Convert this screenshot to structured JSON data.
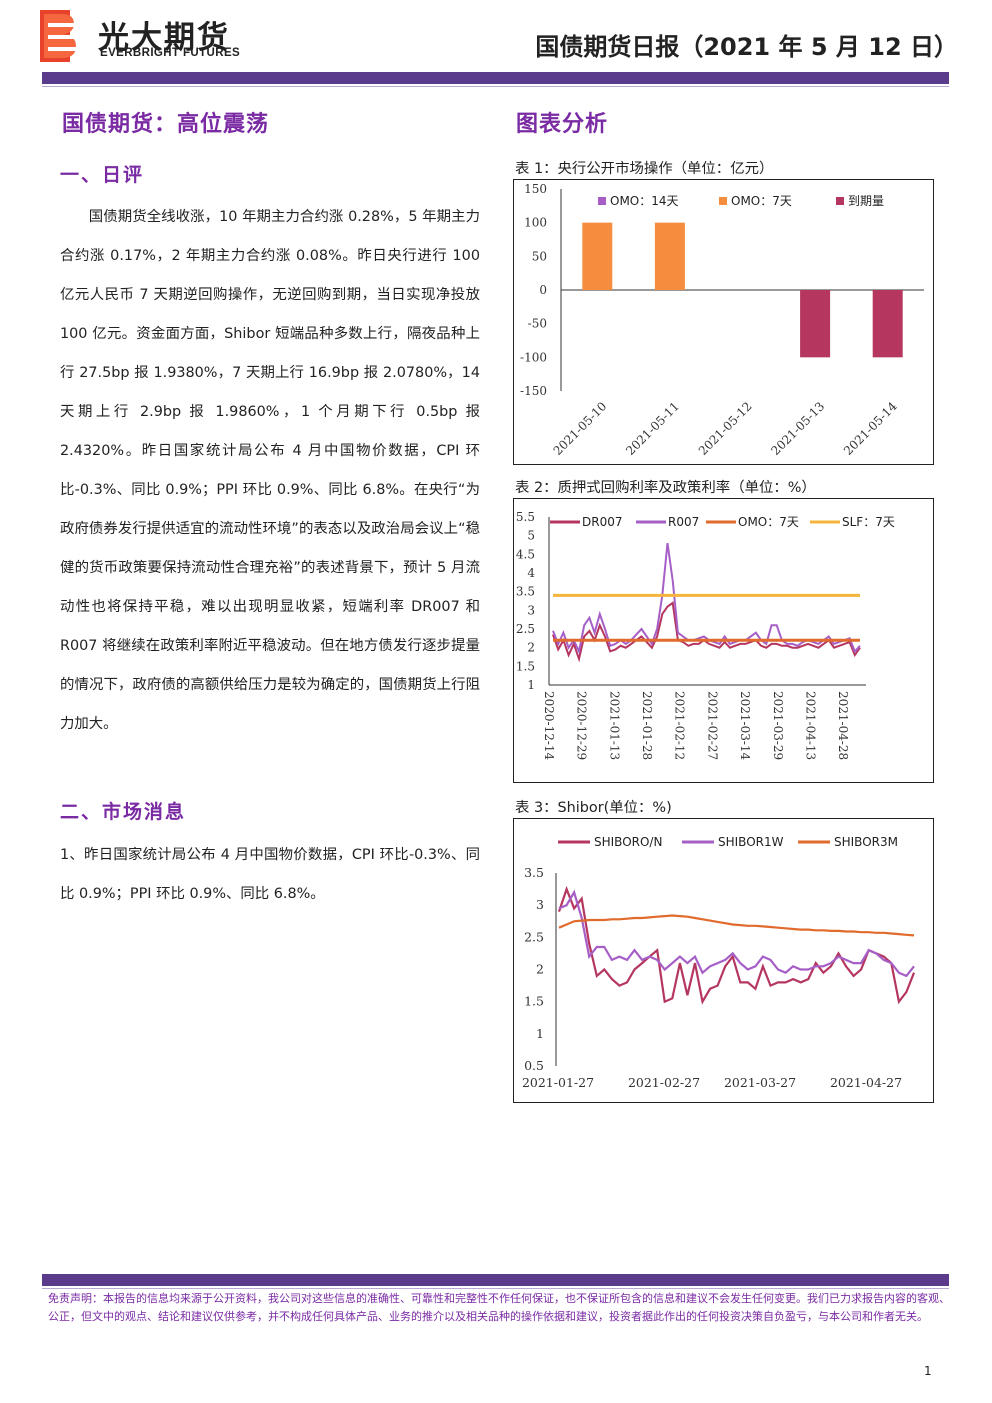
{
  "header": {
    "company_cn": "光大期货",
    "company_en": "EVERBRIGHT FUTURES",
    "doc_title": "国债期货日报（2021 年 5 月 12 日）"
  },
  "left": {
    "section_title": "国债期货：高位震荡",
    "daily_title": "一、日评",
    "daily_text": "国债期货全线收涨，10 年期主力合约涨 0.28%，5 年期主力合约涨 0.17%，2 年期主力合约涨 0.08%。昨日央行进行 100 亿元人民币 7 天期逆回购操作，无逆回购到期，当日实现净投放 100 亿元。资金面方面，Shibor 短端品种多数上行，隔夜品种上行 27.5bp 报 1.9380%，7 天期上行 16.9bp 报 2.0780%，14 天期上行 2.9bp 报 1.9860%，1 个月期下行 0.5bp 报 2.4320%。昨日国家统计局公布 4 月中国物价数据，CPI 环比-0.3%、同比 0.9%；PPI 环比 0.9%、同比 6.8%。在央行“为政府债券发行提供适宜的流动性环境”的表态以及政治局会议上“稳健的货币政策要保持流动性合理充裕”的表述背景下，预计 5 月流动性也将保持平稳，难以出现明显收紧，短端利率 DR007 和 R007 将继续在政策利率附近平稳波动。但在地方债发行逐步提量的情况下，政府债的高额供给压力是较为确定的，国债期货上行阻力加大。",
    "market_title": "二、市场消息",
    "market_text": "1、昨日国家统计局公布 4 月中国物价数据，CPI 环比-0.3%、同比 0.9%；PPI 环比 0.9%、同比 6.8%。"
  },
  "right": {
    "section_title": "图表分析"
  },
  "colors": {
    "brand_purple": "#5b3b8c",
    "heading_purple": "#7a2aa3",
    "omo7_orange": "#f58d3f",
    "maturity_red": "#b5365f",
    "dr007": "#b5365f",
    "r007": "#a65fc7",
    "omo_line": "#e06b2c",
    "slf_line": "#f5b53d"
  },
  "chart_data": [
    {
      "type": "bar",
      "title": "表 1：央行公开市场操作（单位：亿元）",
      "categories": [
        "2021-05-10",
        "2021-05-11",
        "2021-05-12",
        "2021-05-13",
        "2021-05-14"
      ],
      "series": [
        {
          "name": "OMO：14天",
          "color": "#a65fc7",
          "values": [
            0,
            0,
            0,
            0,
            0
          ]
        },
        {
          "name": "OMO：7天",
          "color": "#f58d3f",
          "values": [
            100,
            100,
            0,
            0,
            0
          ]
        },
        {
          "name": "到期量",
          "color": "#b5365f",
          "values": [
            0,
            0,
            0,
            -100,
            -100
          ]
        }
      ],
      "ylim": [
        -150,
        150
      ],
      "yticks": [
        "150",
        "100",
        "50",
        "0",
        "-50",
        "-100",
        "-150"
      ],
      "legend": "top"
    },
    {
      "type": "line",
      "title": "表 2：质押式回购利率及政策利率（单位：%）",
      "xticks": [
        "2020-12-14",
        "2020-12-29",
        "2021-01-13",
        "2021-01-28",
        "2021-02-12",
        "2021-02-27",
        "2021-03-14",
        "2021-03-29",
        "2021-04-13",
        "2021-04-28"
      ],
      "ylim": [
        1,
        5.5
      ],
      "yticks": [
        "5.5",
        "5",
        "4.5",
        "4",
        "3.5",
        "3",
        "2.5",
        "2",
        "1.5",
        "1"
      ],
      "series": [
        {
          "name": "DR007",
          "color": "#b5365f",
          "values": [
            2.35,
            1.95,
            2.2,
            1.8,
            2.1,
            1.7,
            2.3,
            2.45,
            2.2,
            2.6,
            2.3,
            1.9,
            1.95,
            2.05,
            2.0,
            2.1,
            2.2,
            2.3,
            2.15,
            2.0,
            2.3,
            2.9,
            3.1,
            3.2,
            2.2,
            2.15,
            2.05,
            2.1,
            2.1,
            2.2,
            2.1,
            2.05,
            2.0,
            2.15,
            2.0,
            2.05,
            2.1,
            2.1,
            2.15,
            2.2,
            2.05,
            2.0,
            2.1,
            2.1,
            2.05,
            2.05,
            2.0,
            2.0,
            2.05,
            2.1,
            2.05,
            2.0,
            2.1,
            2.2,
            2.0,
            2.05,
            2.1,
            2.15,
            1.8,
            2.0
          ]
        },
        {
          "name": "R007",
          "color": "#a65fc7",
          "values": [
            2.45,
            2.1,
            2.4,
            2.0,
            2.2,
            1.9,
            2.6,
            2.8,
            2.4,
            2.9,
            2.5,
            2.05,
            2.1,
            2.2,
            2.1,
            2.2,
            2.35,
            2.5,
            2.3,
            2.1,
            2.5,
            3.4,
            4.8,
            3.8,
            2.4,
            2.3,
            2.2,
            2.2,
            2.25,
            2.3,
            2.2,
            2.15,
            2.1,
            2.3,
            2.1,
            2.15,
            2.2,
            2.2,
            2.3,
            2.4,
            2.2,
            2.1,
            2.6,
            2.6,
            2.2,
            2.1,
            2.1,
            2.05,
            2.15,
            2.2,
            2.15,
            2.1,
            2.2,
            2.3,
            2.1,
            2.15,
            2.2,
            2.25,
            1.9,
            2.05
          ]
        },
        {
          "name": "OMO：7天",
          "color": "#e06b2c",
          "values": [
            2.2,
            2.2
          ]
        },
        {
          "name": "SLF：7天",
          "color": "#f5b53d",
          "values": [
            3.4,
            3.4
          ]
        }
      ],
      "legend": "top"
    },
    {
      "type": "line",
      "title": "表 3：Shibor(单位：%)",
      "xticks": [
        "2021-01-27",
        "2021-02-27",
        "2021-03-27",
        "2021-04-27"
      ],
      "ylim": [
        0.5,
        3.5
      ],
      "yticks": [
        "3.5",
        "3",
        "2.5",
        "2",
        "1.5",
        "1",
        "0.5"
      ],
      "series": [
        {
          "name": "SHIBORO/N",
          "color": "#b5365f",
          "values": [
            2.9,
            3.25,
            2.95,
            3.1,
            2.4,
            1.9,
            2.0,
            1.85,
            1.75,
            1.8,
            2.0,
            2.1,
            2.2,
            2.3,
            1.5,
            1.55,
            2.1,
            1.6,
            2.1,
            1.5,
            1.7,
            1.75,
            2.05,
            2.2,
            1.8,
            1.8,
            1.7,
            2.05,
            1.75,
            1.8,
            1.8,
            1.85,
            1.8,
            1.85,
            2.1,
            1.95,
            2.05,
            2.25,
            2.05,
            1.9,
            2.0,
            2.3,
            2.25,
            2.2,
            2.1,
            1.5,
            1.65,
            1.95
          ]
        },
        {
          "name": "SHIBOR1W",
          "color": "#a65fc7",
          "values": [
            2.95,
            3.0,
            3.2,
            2.8,
            2.2,
            2.35,
            2.35,
            2.15,
            2.2,
            2.15,
            2.3,
            2.15,
            2.2,
            2.15,
            2.0,
            2.1,
            2.2,
            2.1,
            2.2,
            1.95,
            2.05,
            2.1,
            2.15,
            2.25,
            2.1,
            2.0,
            2.05,
            2.2,
            2.15,
            2.0,
            1.95,
            2.05,
            2.0,
            2.0,
            2.05,
            2.05,
            2.1,
            2.2,
            2.15,
            2.1,
            2.1,
            2.3,
            2.25,
            2.15,
            2.1,
            1.95,
            1.9,
            2.05
          ]
        },
        {
          "name": "SHIBOR3M",
          "color": "#e06b2c",
          "values": [
            2.65,
            2.7,
            2.75,
            2.76,
            2.77,
            2.77,
            2.77,
            2.78,
            2.78,
            2.79,
            2.8,
            2.8,
            2.81,
            2.82,
            2.83,
            2.84,
            2.83,
            2.82,
            2.8,
            2.78,
            2.76,
            2.74,
            2.72,
            2.7,
            2.69,
            2.68,
            2.68,
            2.67,
            2.66,
            2.65,
            2.64,
            2.63,
            2.62,
            2.62,
            2.61,
            2.61,
            2.6,
            2.6,
            2.59,
            2.59,
            2.58,
            2.58,
            2.57,
            2.57,
            2.56,
            2.55,
            2.54,
            2.53
          ]
        }
      ],
      "legend": "top"
    }
  ],
  "footer": {
    "disclaimer": "免责声明：本报告的信息均来源于公开资料，我公司对这些信息的准确性、可靠性和完整性不作任何保证，也不保证所包含的信息和建议不会发生任何变更。我们已力求报告内容的客观、公正，但文中的观点、结论和建议仅供参考，并不构成任何具体产品、业务的推介以及相关品种的操作依据和建议，投资者据此作出的任何投资决策自负盈亏，与本公司和作者无关。",
    "page_number": "1"
  }
}
